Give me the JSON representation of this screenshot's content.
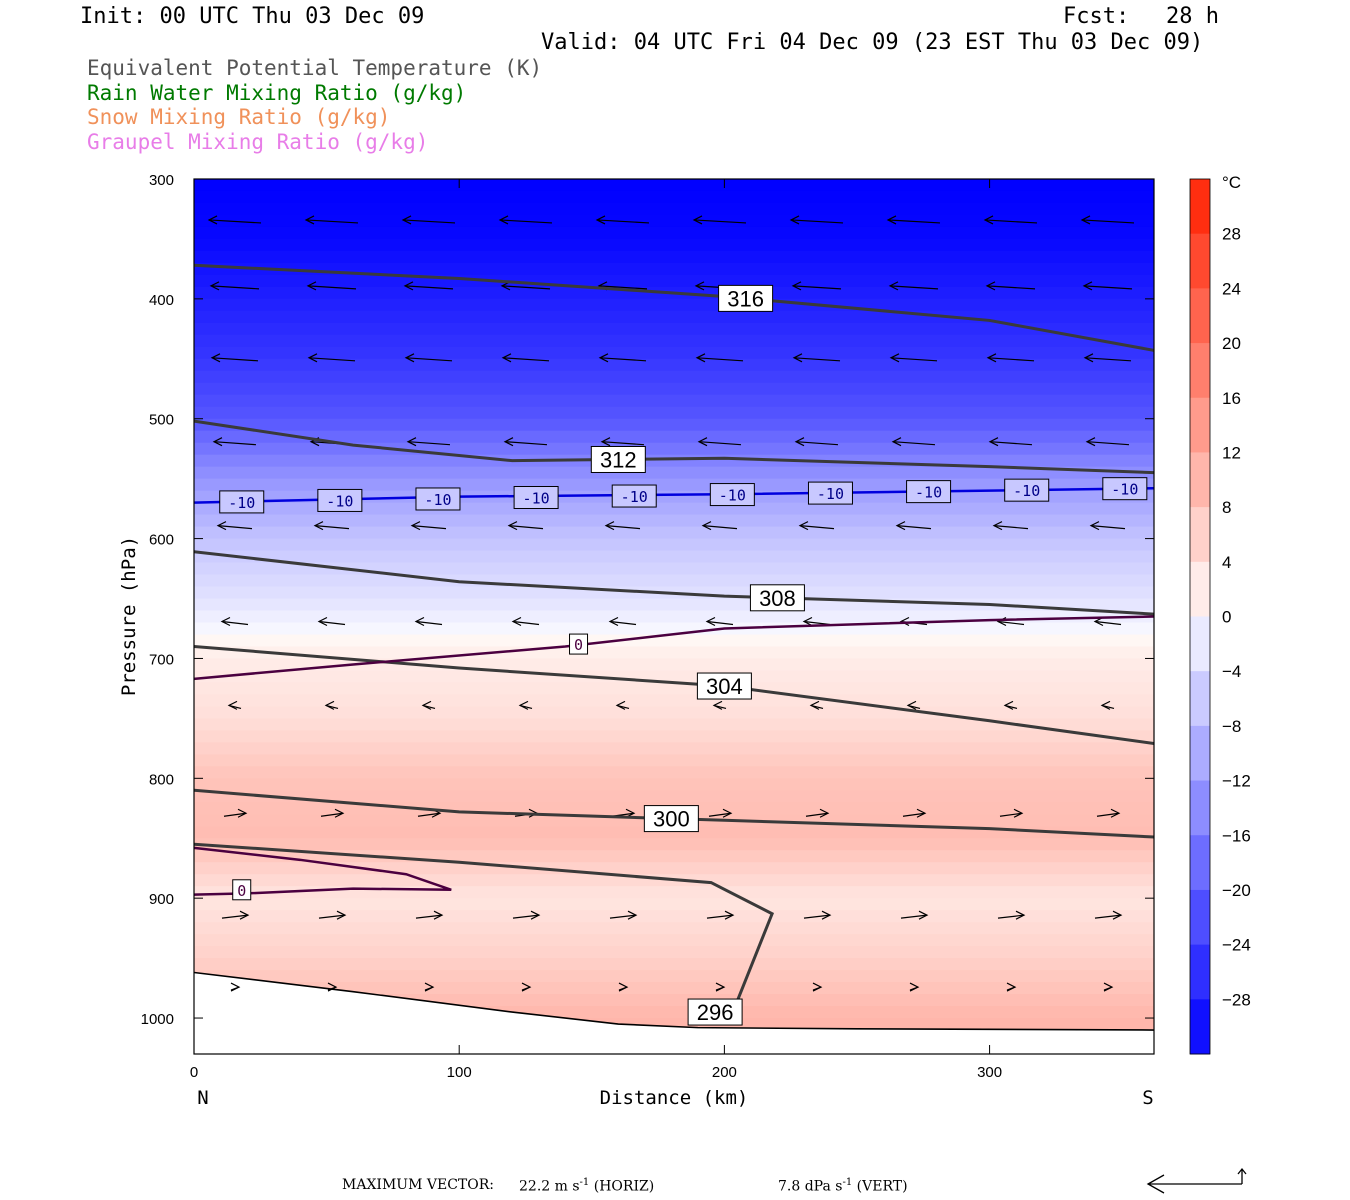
{
  "header": {
    "init": "Init: 00 UTC Thu 03 Dec 09",
    "fcst_label": "Fcst:",
    "fcst_value": "28 h",
    "valid": "Valid: 04 UTC Fri 04 Dec 09 (23 EST Thu 03 Dec 09)"
  },
  "legend": [
    {
      "label": "Equivalent Potential Temperature (K)",
      "color": "#555555"
    },
    {
      "label": "Rain Water Mixing Ratio (g/kg)",
      "color": "#007a00"
    },
    {
      "label": "Snow Mixing Ratio (g/kg)",
      "color": "#f0915a"
    },
    {
      "label": "Graupel Mixing Ratio (g/kg)",
      "color": "#e87de8"
    }
  ],
  "footer": {
    "max_vector_label": "MAXIMUM VECTOR:",
    "horiz": "22.2 m s",
    "horiz_exp": "-1",
    "horiz_unit": "(HORIZ)",
    "vert": "7.8 dPa s",
    "vert_exp": "-1",
    "vert_unit": "(VERT)"
  },
  "chart_data": {
    "type": "cross-section",
    "xlabel": "Distance (km)",
    "ylabel": "Pressure (hPa)",
    "xlim": [
      0,
      362
    ],
    "ylim": [
      1030,
      300
    ],
    "y_log": false,
    "x_ticks": [
      0,
      100,
      200,
      300
    ],
    "y_ticks": [
      300,
      400,
      500,
      600,
      700,
      800,
      900,
      1000
    ],
    "endpoints": {
      "left": "N",
      "right": "S"
    },
    "colorbar": {
      "unit": "°C",
      "ticks": [
        28,
        24,
        20,
        16,
        12,
        8,
        4,
        0,
        -4,
        -8,
        -12,
        -16,
        -20,
        -24,
        -28
      ],
      "range": [
        -32,
        32
      ],
      "cold_color": "#0000ff",
      "warm_color": "#ff2200"
    },
    "temperature_field": {
      "pressure": [
        300,
        350,
        400,
        450,
        500,
        550,
        600,
        650,
        700,
        750,
        800,
        850,
        900,
        950,
        1000
      ],
      "temp_c": [
        -32,
        -31,
        -28,
        -25,
        -21,
        -13,
        -7,
        -3,
        2,
        4,
        8,
        9,
        3,
        6,
        10
      ]
    },
    "theta_e_contours": [
      {
        "level": 316,
        "label": "316",
        "x": [
          0,
          100,
          200,
          300,
          362
        ],
        "p": [
          372,
          383,
          398,
          418,
          443
        ]
      },
      {
        "level": 312,
        "label": "312",
        "x": [
          0,
          60,
          120,
          200,
          300,
          362
        ],
        "p": [
          502,
          522,
          535,
          533,
          540,
          545
        ]
      },
      {
        "level": 308,
        "label": "308",
        "x": [
          0,
          100,
          200,
          300,
          362
        ],
        "p": [
          611,
          636,
          648,
          655,
          663
        ]
      },
      {
        "level": 304,
        "label": "304",
        "x": [
          0,
          100,
          200,
          300,
          362
        ],
        "p": [
          690,
          708,
          723,
          752,
          771
        ]
      },
      {
        "level": 300,
        "label": "300",
        "x": [
          0,
          100,
          200,
          300,
          362
        ],
        "p": [
          810,
          828,
          835,
          842,
          849
        ]
      },
      {
        "level": 296,
        "label": "296",
        "x": [
          0,
          100,
          195,
          218,
          205,
          188
        ],
        "p": [
          855,
          870,
          887,
          913,
          985,
          1005
        ]
      }
    ],
    "isotherms": [
      {
        "level": -10,
        "label": "-10",
        "x": [
          0,
          100,
          200,
          300,
          362
        ],
        "p": [
          570,
          565,
          563,
          560,
          558
        ]
      },
      {
        "level": 0,
        "label": "0",
        "x": [
          0,
          60,
          140,
          200,
          300,
          362
        ],
        "p": [
          717,
          705,
          690,
          675,
          668,
          665
        ]
      },
      {
        "level": 0,
        "label": "0",
        "x": [
          0,
          40,
          80,
          97,
          60,
          20,
          0
        ],
        "p": [
          858,
          868,
          880,
          893,
          892,
          896,
          897
        ]
      }
    ],
    "terrain": {
      "x": [
        0,
        60,
        120,
        160,
        190,
        250,
        362
      ],
      "p": [
        962,
        978,
        995,
        1005,
        1008,
        1009,
        1010
      ]
    },
    "max_vector": {
      "horiz_ms": 22.2,
      "vert_dpas": 7.8
    }
  }
}
